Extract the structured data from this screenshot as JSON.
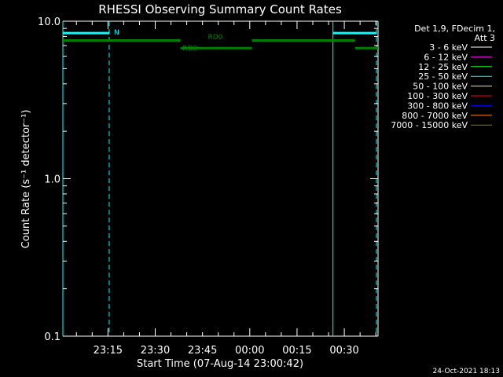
{
  "chart_data": {
    "type": "line",
    "title": "RHESSI Observing Summary Count Rates",
    "xlabel": "Start Time (07-Aug-14 23:00:42)",
    "ylabel": "Count Rate (s⁻¹ detector⁻¹)",
    "yscale": "log",
    "ylim": [
      0.1,
      10.0
    ],
    "xlim_min": [
      0,
      100
    ],
    "x_ticks": [
      {
        "label": "23:15",
        "min": 14.3
      },
      {
        "label": "23:30",
        "min": 29.3
      },
      {
        "label": "23:45",
        "min": 44.3
      },
      {
        "label": "00:00",
        "min": 59.3
      },
      {
        "label": "00:15",
        "min": 74.3
      },
      {
        "label": "00:30",
        "min": 89.3
      }
    ],
    "y_ticks": [
      {
        "label": "10.0",
        "value": 10.0
      },
      {
        "label": "1.0",
        "value": 1.0
      },
      {
        "label": "0.1",
        "value": 0.1
      }
    ],
    "legend": {
      "placement": "right",
      "header": [
        "Det 1,9, FDecim 1,",
        "Att 3"
      ],
      "entries": [
        {
          "label": "3 - 6 keV",
          "color": "#ffffff"
        },
        {
          "label": "6 - 12 keV",
          "color": "#ff00ff"
        },
        {
          "label": "12 - 25 keV",
          "color": "#00ff00"
        },
        {
          "label": "25 - 50 keV",
          "color": "#00ffff"
        },
        {
          "label": "50 - 100 keV",
          "color": "#ffff00"
        },
        {
          "label": "100 - 300 keV",
          "color": "#ff0000"
        },
        {
          "label": "300 - 800 keV",
          "color": "#0000ff"
        },
        {
          "label": "800 - 7000 keV",
          "color": "#ff8000"
        },
        {
          "label": "7000 - 15000 keV",
          "color": "#808000"
        }
      ]
    },
    "flag_colors": {
      "night": "#00ffff",
      "decimation": "#008000"
    },
    "night_bars": [
      {
        "from": 0,
        "to": 14.7,
        "level": 8.4,
        "label": "N"
      },
      {
        "from": 85.7,
        "to": 99.5,
        "level": 8.4
      }
    ],
    "decim_bars": [
      {
        "from": 0,
        "to": 37.3,
        "level": 7.55
      },
      {
        "from": 37.3,
        "to": 60.0,
        "level": 6.75
      },
      {
        "from": 60.0,
        "to": 92.7,
        "level": 7.55
      },
      {
        "from": 92.7,
        "to": 100.0,
        "level": 6.75
      }
    ],
    "decim_labels": [
      {
        "text": "RD0",
        "min": 46.0,
        "level": 7.7
      },
      {
        "text": "RD8",
        "min": 38.0,
        "level": 6.5
      }
    ],
    "solid_markers_min": [
      0,
      85.7
    ],
    "dashed_markers_min": [
      14.7,
      99.5
    ]
  },
  "footer": {
    "timestamp": "24-Oct-2021 18:13"
  }
}
